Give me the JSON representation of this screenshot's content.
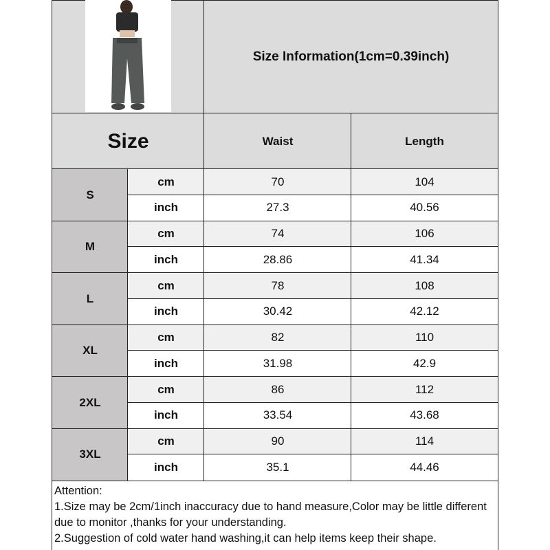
{
  "title": "Size Information(1cm=0.39inch)",
  "header": {
    "size": "Size",
    "waist": "Waist",
    "length": "Length"
  },
  "rows": [
    {
      "size": "S",
      "cm_label": "cm",
      "inch_label": "inch",
      "waist_cm": "70",
      "length_cm": "104",
      "waist_in": "27.3",
      "length_in": "40.56"
    },
    {
      "size": "M",
      "cm_label": "cm",
      "inch_label": "inch",
      "waist_cm": "74",
      "length_cm": "106",
      "waist_in": "28.86",
      "length_in": "41.34"
    },
    {
      "size": "L",
      "cm_label": "cm",
      "inch_label": "inch",
      "waist_cm": "78",
      "length_cm": "108",
      "waist_in": "30.42",
      "length_in": "42.12"
    },
    {
      "size": "XL",
      "cm_label": "cm",
      "inch_label": "inch",
      "waist_cm": "82",
      "length_cm": "110",
      "waist_in": "31.98",
      "length_in": "42.9"
    },
    {
      "size": "2XL",
      "cm_label": "cm",
      "inch_label": "inch",
      "waist_cm": "86",
      "length_cm": "112",
      "waist_in": "33.54",
      "length_in": "43.68"
    },
    {
      "size": "3XL",
      "cm_label": "cm",
      "inch_label": "inch",
      "waist_cm": "90",
      "length_cm": "114",
      "waist_in": "35.1",
      "length_in": "44.46"
    }
  ],
  "attention": {
    "heading": "Attention:",
    "note1": "1.Size may be 2cm/1inch inaccuracy due to hand measure,Color may be little different due to monitor ,thanks for your understanding.",
    "note2": "2.Suggestion of cold water hand washing,it can help items keep their shape."
  }
}
